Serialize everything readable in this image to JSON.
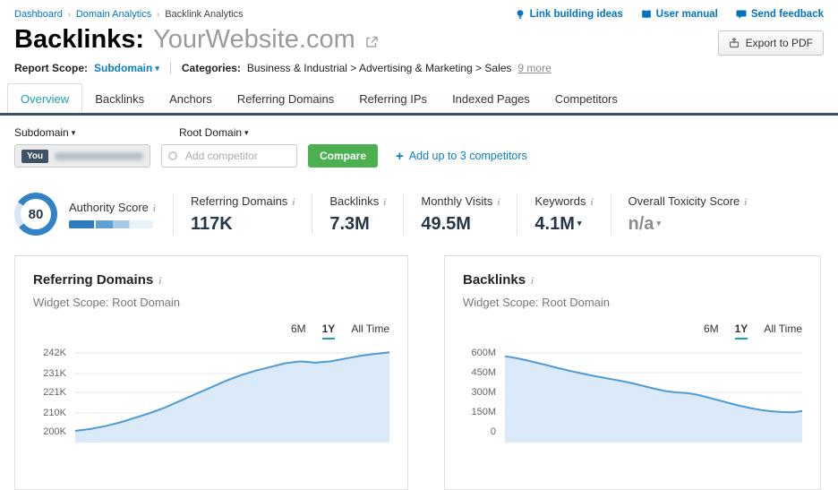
{
  "breadcrumb": {
    "items": [
      "Dashboard",
      "Domain Analytics",
      "Backlink Analytics"
    ]
  },
  "header_links": {
    "ideas": "Link building ideas",
    "manual": "User manual",
    "feedback": "Send feedback"
  },
  "title": {
    "prefix": "Backlinks:",
    "domain": "YourWebsite.com"
  },
  "export_button_label": "Export to PDF",
  "report_scope": {
    "label": "Report Scope:",
    "value": "Subdomain"
  },
  "categories": {
    "label": "Categories:",
    "path": "Business & Industrial > Advertising & Marketing > Sales",
    "more": "9 more"
  },
  "tabs": {
    "items": [
      "Overview",
      "Backlinks",
      "Anchors",
      "Referring Domains",
      "Referring IPs",
      "Indexed Pages",
      "Competitors"
    ],
    "active": "Overview"
  },
  "competitor_bar": {
    "left_scope": "Subdomain",
    "right_scope": "Root Domain",
    "you_badge": "You",
    "add_competitor_placeholder": "Add competitor",
    "compare_button": "Compare",
    "add_link": "Add up to 3 competitors"
  },
  "metrics": {
    "authority": {
      "label": "Authority Score",
      "value": "80"
    },
    "referring_domains": {
      "label": "Referring Domains",
      "value": "117K"
    },
    "backlinks": {
      "label": "Backlinks",
      "value": "7.3M"
    },
    "monthly_visits": {
      "label": "Monthly Visits",
      "value": "49.5M"
    },
    "keywords": {
      "label": "Keywords",
      "value": "4.1M"
    },
    "toxicity": {
      "label": "Overall Toxicity Score",
      "value": "n/a"
    }
  },
  "colors": {
    "accent_teal": "#1a9fb0",
    "link_blue": "#0074c2",
    "compare_green": "#4caf50",
    "navy_bar": "#3a5064",
    "value_navy": "#253746",
    "chart_line": "#4e9bd5",
    "chart_fill": "#daeaf8"
  },
  "chart_data": [
    {
      "type": "area",
      "title": "Referring Domains",
      "widget_scope": "Widget Scope: Root Domain",
      "range_options": [
        "6M",
        "1Y",
        "All Time"
      ],
      "active_range": "1Y",
      "unit": "K",
      "ytick_labels": [
        "242K",
        "231K",
        "221K",
        "210K",
        "200K"
      ],
      "ytick_values": [
        242,
        231,
        221,
        210,
        200
      ],
      "ylim": [
        200,
        242
      ],
      "values": [
        200.5,
        201.5,
        203,
        205,
        207.5,
        210,
        213,
        216.5,
        220,
        223.5,
        227,
        230,
        232.5,
        234.5,
        236.5,
        237.5,
        236.8,
        237.5,
        239,
        240.5,
        241.5,
        242.4
      ],
      "line_color": "#4e9bd5",
      "fill_color": "#daeaf8"
    },
    {
      "type": "area",
      "title": "Backlinks",
      "widget_scope": "Widget Scope: Root Domain",
      "range_options": [
        "6M",
        "1Y",
        "All Time"
      ],
      "active_range": "1Y",
      "unit": "M",
      "ytick_labels": [
        "600M",
        "450M",
        "300M",
        "150M",
        "0"
      ],
      "ytick_values": [
        600,
        450,
        300,
        150,
        0
      ],
      "ylim": [
        0,
        600
      ],
      "values": [
        575,
        562,
        545,
        525,
        505,
        485,
        465,
        447,
        430,
        415,
        400,
        385,
        368,
        348,
        328,
        310,
        300,
        295,
        282,
        262,
        240,
        218,
        198,
        180,
        166,
        156,
        150,
        148,
        160
      ],
      "line_color": "#4e9bd5",
      "fill_color": "#daeaf8"
    }
  ]
}
